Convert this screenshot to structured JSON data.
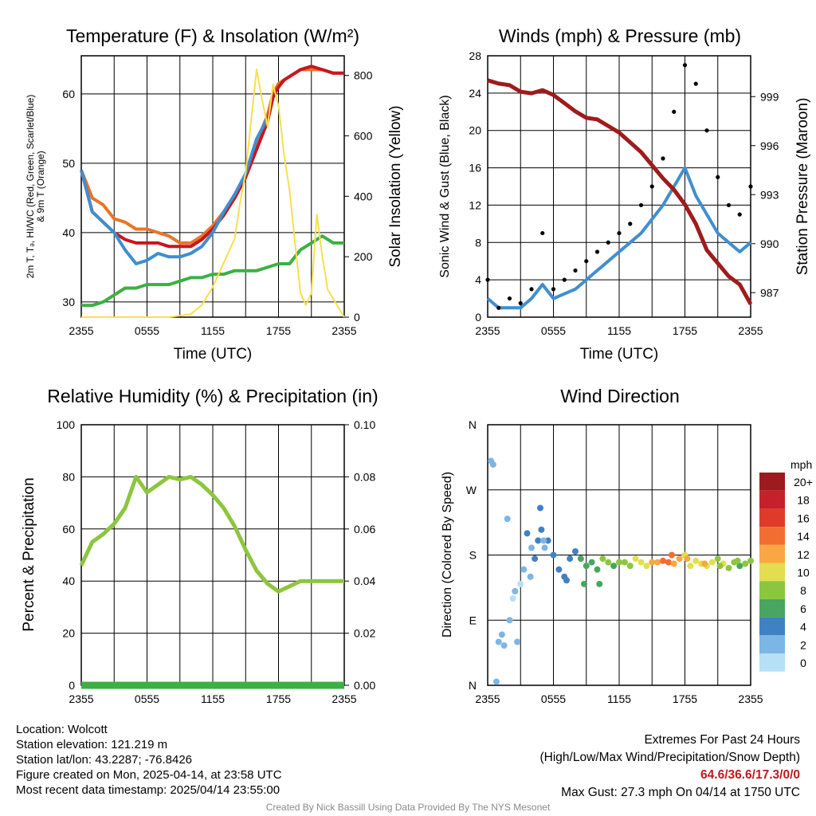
{
  "chart_data": [
    {
      "id": "temp",
      "type": "line",
      "title": "Temperature (F) & Insolation (W/m²)",
      "ylabel_lines": [
        "2m T, Tₔ, HI/WC (Red, Green, Scarlet/Blue)",
        "& 9m T (Orange)"
      ],
      "y2label": "Solar Insolation (Yellow)",
      "xlabel": "Time (UTC)",
      "x_ticks": [
        "2355",
        "0555",
        "1155",
        "1755",
        "2355"
      ],
      "ylim": [
        27.8,
        65.5
      ],
      "y_ticks": [
        30,
        40,
        50,
        60
      ],
      "y2lim": [
        0,
        865
      ],
      "y2_ticks": [
        0,
        200,
        400,
        600,
        800
      ],
      "grid": true,
      "series": [
        {
          "color": "#e8752a",
          "axis": "left",
          "x": [
            0,
            1,
            2,
            3,
            4,
            5,
            6,
            7,
            8,
            9,
            10,
            11,
            12,
            13,
            14,
            15,
            16,
            17,
            17.5,
            18,
            18.5,
            19,
            20,
            21,
            22,
            23,
            24
          ],
          "values": [
            49,
            45,
            44,
            42,
            41.5,
            40.5,
            40.5,
            40,
            39.5,
            38.5,
            38.5,
            39.5,
            41,
            43,
            45,
            48,
            53,
            57,
            60,
            61.5,
            62,
            62.5,
            63.5,
            63.5,
            63.5,
            63,
            63
          ]
        },
        {
          "color": "#c8161d",
          "axis": "left",
          "x": [
            0,
            1,
            2,
            3,
            4,
            5,
            6,
            7,
            8,
            9,
            10,
            11,
            12,
            13,
            14,
            15,
            16,
            17,
            17.5,
            18,
            18.5,
            19,
            20,
            21,
            22,
            23,
            24
          ],
          "values": [
            49,
            43,
            41.5,
            40,
            39,
            38.5,
            38.5,
            38.5,
            38,
            38,
            38,
            39,
            40.5,
            42.5,
            45,
            48,
            52,
            56,
            59.5,
            61,
            62,
            62.5,
            63.5,
            64,
            63.5,
            63,
            63
          ]
        },
        {
          "color": "#3f8fd0",
          "axis": "left",
          "x": [
            0,
            1,
            2,
            3,
            4,
            5,
            6,
            7,
            8,
            9,
            10,
            11,
            12,
            13,
            14,
            15,
            16,
            17
          ],
          "values": [
            49,
            43,
            41.5,
            40,
            37.5,
            35.5,
            36,
            37,
            36.5,
            36.5,
            37,
            38,
            40,
            43,
            45.5,
            48.5,
            53.5,
            56.5
          ]
        },
        {
          "color": "#3cb043",
          "axis": "left",
          "x": [
            0,
            1,
            2,
            3,
            4,
            5,
            6,
            7,
            8,
            9,
            10,
            11,
            12,
            13,
            14,
            15,
            16,
            17,
            18,
            19,
            20,
            21,
            22,
            23,
            24
          ],
          "values": [
            29.5,
            29.5,
            30,
            31,
            32,
            32,
            32.5,
            32.5,
            32.5,
            33,
            33.5,
            33.5,
            34,
            34,
            34.5,
            34.5,
            34.5,
            35,
            35.5,
            35.5,
            37.5,
            38.5,
            39.5,
            38.5,
            38.5
          ]
        },
        {
          "color": "#f7e04b",
          "axis": "right",
          "x": [
            0,
            8,
            10,
            11,
            12,
            13,
            14,
            14.5,
            15,
            15.5,
            16,
            16.5,
            17,
            17.5,
            18,
            18.5,
            19,
            19.5,
            20,
            20.5,
            21,
            21.5,
            22,
            22.5,
            23,
            23.5,
            24
          ],
          "values": [
            0,
            0,
            10,
            40,
            100,
            180,
            260,
            380,
            480,
            650,
            820,
            720,
            630,
            770,
            700,
            540,
            420,
            250,
            80,
            40,
            80,
            340,
            200,
            90,
            60,
            30,
            0
          ]
        }
      ]
    },
    {
      "id": "wind",
      "type": "line",
      "title": "Winds (mph) & Pressure (mb)",
      "ylabel": "Sonic Wind & Gust (Blue, Black)",
      "y2label": "Station Pressure (Maroon)",
      "xlabel": "Time (UTC)",
      "x_ticks": [
        "2355",
        "0555",
        "1155",
        "1755",
        "2355"
      ],
      "ylim": [
        0,
        28
      ],
      "y_ticks": [
        0,
        4,
        8,
        12,
        16,
        20,
        24,
        28
      ],
      "y2lim": [
        985.5,
        1001.5
      ],
      "y2_ticks": [
        987,
        990,
        993,
        996,
        999
      ],
      "grid": true,
      "series": [
        {
          "name": "Wind",
          "color": "#3f8fd0",
          "x": [
            0,
            1,
            2,
            3,
            4,
            5,
            6,
            7,
            8,
            9,
            10,
            11,
            12,
            13,
            14,
            15,
            16,
            17,
            18,
            19,
            20,
            21,
            22,
            23,
            24
          ],
          "values": [
            2,
            1,
            1,
            1,
            2,
            3.5,
            2,
            2.5,
            3,
            4,
            5,
            6,
            7,
            8,
            9,
            10.5,
            12,
            14,
            16,
            13,
            11,
            9,
            8,
            7,
            8
          ]
        },
        {
          "name": "Gust",
          "color": "#000000",
          "type": "scatter",
          "x": [
            0,
            1,
            2,
            3,
            4,
            5,
            6,
            7,
            8,
            9,
            10,
            11,
            12,
            13,
            14,
            15,
            16,
            17,
            18,
            19,
            20,
            21,
            22,
            23,
            24
          ],
          "values": [
            4,
            1,
            2,
            1.5,
            3,
            9,
            3,
            4,
            5,
            6,
            7,
            8,
            9,
            10,
            12,
            14,
            17,
            22,
            27,
            25,
            20,
            15,
            12,
            11,
            14
          ]
        },
        {
          "name": "Pressure",
          "color": "#9e1c1c",
          "axis": "right",
          "x": [
            0,
            1,
            2,
            3,
            4,
            5,
            6,
            7,
            8,
            9,
            10,
            11,
            12,
            13,
            14,
            15,
            16,
            17,
            18,
            19,
            20,
            21,
            22,
            23,
            24
          ],
          "values": [
            1000,
            999.8,
            999.7,
            999.3,
            999.2,
            999.4,
            999.1,
            998.6,
            998.1,
            997.7,
            997.6,
            997.2,
            996.8,
            996.2,
            995.6,
            994.8,
            994,
            993.3,
            992.4,
            991.2,
            989.6,
            988.8,
            988,
            987.5,
            986.3
          ]
        }
      ]
    },
    {
      "id": "rh",
      "type": "line",
      "title": "Relative Humidity (%) & Precipitation (in)",
      "ylabel": "Percent & Precipitation",
      "ylim": [
        0,
        100
      ],
      "y_ticks": [
        0,
        20,
        40,
        60,
        80,
        100
      ],
      "y2lim": [
        0,
        0.1
      ],
      "y2_ticks": [
        "0.00",
        "0.02",
        "0.04",
        "0.06",
        "0.08",
        "0.10"
      ],
      "x_ticks": [
        "2355",
        "0555",
        "1155",
        "1755",
        "2355"
      ],
      "grid": true,
      "series": [
        {
          "name": "RH",
          "color": "#8cc63f",
          "x": [
            0,
            1,
            2,
            3,
            4,
            5,
            6,
            7,
            8,
            9,
            10,
            11,
            12,
            13,
            14,
            15,
            16,
            17,
            18,
            19,
            20,
            21,
            22,
            23,
            24
          ],
          "values": [
            46,
            55,
            58,
            62,
            68,
            80,
            74,
            77,
            80,
            79,
            80,
            77,
            73,
            68,
            61,
            52,
            44,
            39,
            36,
            38,
            40,
            40,
            40,
            40,
            40
          ]
        },
        {
          "name": "Precipitation",
          "color": "#3cb043",
          "x": [
            0,
            24
          ],
          "values": [
            0,
            0
          ]
        }
      ]
    },
    {
      "id": "dir",
      "type": "scatter",
      "title": "Wind Direction",
      "ylabel": "Direction (Colored By Speed)",
      "y_ticks": [
        "N",
        "E",
        "S",
        "W",
        "N"
      ],
      "ylim": [
        0,
        360
      ],
      "x_ticks": [
        "2355",
        "0555",
        "1155",
        "1755",
        "2355"
      ],
      "grid": true,
      "legend": {
        "unit": "mph",
        "labels": [
          "20+",
          "18",
          "16",
          "14",
          "12",
          "10",
          "8",
          "6",
          "4",
          "2",
          "0"
        ],
        "colors": [
          "#9b1b1e",
          "#c6202a",
          "#e03a2b",
          "#f26d30",
          "#f9a743",
          "#e2de4f",
          "#8cc63f",
          "#47a660",
          "#3f82c4",
          "#7cb6e4",
          "#b6e0f4"
        ]
      },
      "points": {
        "x": [
          0.3,
          0.5,
          1,
          1.3,
          1.5,
          2,
          2.3,
          2.5,
          3,
          3.3,
          3.6,
          4,
          4.3,
          4.6,
          4.9,
          5.2,
          5.5,
          6,
          6.5,
          7,
          7.5,
          8,
          8.5,
          9,
          9.5,
          10,
          10.5,
          11,
          11.5,
          12,
          12.5,
          13,
          13.5,
          14,
          14.5,
          15,
          15.5,
          16,
          16.5,
          17,
          17.5,
          18,
          18.5,
          19,
          19.5,
          20,
          20.5,
          21,
          21.5,
          22,
          22.5,
          23,
          23.5,
          24,
          0.8,
          2.7,
          1.8,
          4.8,
          5.1,
          3.9,
          7.2,
          8.8,
          10.2,
          16.8,
          18.2,
          19.8,
          21.2,
          22.8
        ],
        "y": [
          310,
          305,
          60,
          70,
          55,
          90,
          120,
          130,
          140,
          160,
          210,
          190,
          175,
          200,
          215,
          190,
          200,
          180,
          160,
          150,
          175,
          185,
          175,
          165,
          170,
          160,
          175,
          170,
          165,
          170,
          170,
          165,
          175,
          170,
          165,
          170,
          170,
          172,
          170,
          168,
          175,
          180,
          165,
          172,
          168,
          165,
          170,
          175,
          168,
          162,
          170,
          165,
          168,
          172,
          5,
          60,
          230,
          245,
          200,
          150,
          145,
          140,
          140,
          180,
          175,
          168,
          165,
          172
        ],
        "speed": [
          2,
          2,
          1,
          1,
          2,
          1,
          0,
          1,
          0,
          1,
          3,
          2,
          3,
          4,
          3,
          2,
          3,
          4,
          3,
          4,
          3,
          4,
          5,
          5,
          6,
          5,
          7,
          7,
          6,
          7,
          8,
          8,
          9,
          9,
          10,
          11,
          12,
          13,
          14,
          12,
          11,
          10,
          9,
          9,
          10,
          10,
          9,
          8,
          9,
          8,
          7,
          6,
          7,
          7,
          1,
          1,
          1,
          3,
          2,
          1,
          4,
          5,
          6,
          14,
          12,
          11,
          8,
          7
        ]
      }
    }
  ],
  "footer": {
    "location": "Location: Wolcott",
    "elevation": "Station elevation: 121.219 m",
    "latlon": "Station lat/lon: 43.2287; -76.8426",
    "created": "Figure created on Mon, 2025-04-14, at 23:58 UTC",
    "recent": "Most recent data timestamp: 2025/04/14 23:55:00",
    "extremes_title": "Extremes For Past 24 Hours",
    "extremes_sub": "(High/Low/Max Wind/Precipitation/Snow Depth)",
    "extremes_values": "64.6/36.6/17.3/0/0",
    "max_gust": "Max Gust: 27.3 mph On 04/14 at 1750 UTC",
    "credit": "Created By Nick Bassill Using Data Provided By The NYS Mesonet"
  }
}
